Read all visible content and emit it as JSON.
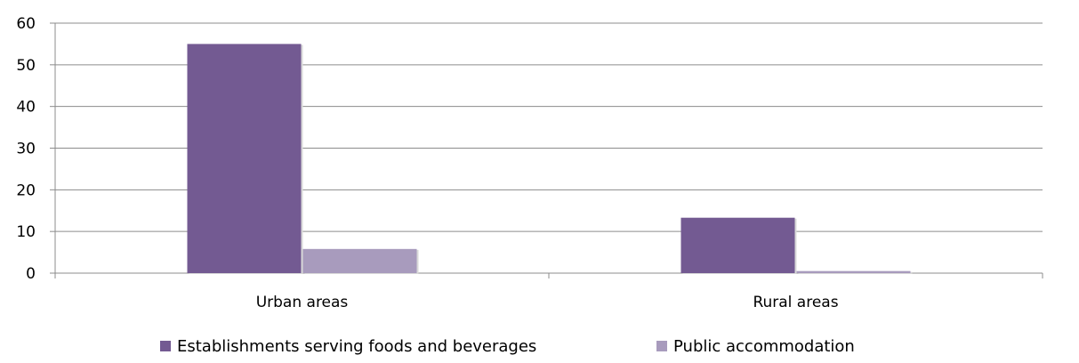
{
  "chart_data": {
    "type": "bar",
    "categories": [
      "Urban areas",
      "Rural areas"
    ],
    "series": [
      {
        "name": "Establishments serving foods and beverages",
        "values": [
          55,
          13.3
        ],
        "color": "#735a92"
      },
      {
        "name": "Public accommodation",
        "values": [
          5.8,
          0.5
        ],
        "color": "#a89bbd"
      }
    ],
    "title": "",
    "xlabel": "",
    "ylabel": "",
    "ylim": [
      0,
      60
    ],
    "yticks": [
      0,
      10,
      20,
      30,
      40,
      50,
      60
    ],
    "grid": true,
    "legend": "bottom-center"
  }
}
